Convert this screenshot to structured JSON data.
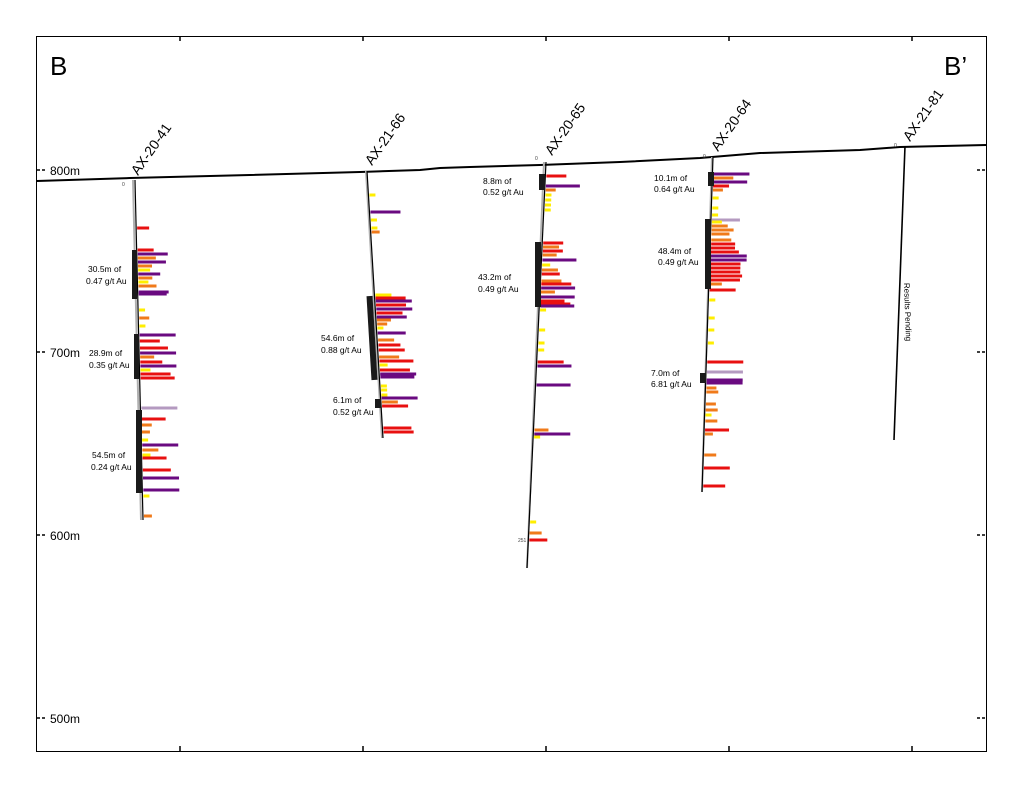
{
  "section": {
    "start_label": "B",
    "end_label": "B’",
    "elevation_labels": [
      {
        "value": 800,
        "label": "800m"
      },
      {
        "value": 700,
        "label": "700m"
      },
      {
        "value": 600,
        "label": "600m"
      },
      {
        "value": 500,
        "label": "500m"
      }
    ]
  },
  "colors": {
    "frame": "#000000",
    "trace": "#000000",
    "trace_shadow": "#b0b0b0",
    "intercept_bar": "#1a1a1a",
    "grade_yellow": "#ffee00",
    "grade_orange": "#f07a1a",
    "grade_red": "#e81010",
    "grade_purple": "#6a0a80",
    "grade_lilac": "#b49ac0"
  },
  "holes": [
    {
      "name": "AX-20-41",
      "collar_marker": "0",
      "intercepts": [
        {
          "line1": "30.5m of",
          "line2": "0.47 g/t Au"
        },
        {
          "line1": "28.9m of",
          "line2": "0.35 g/t Au"
        },
        {
          "line1": "54.5m of",
          "line2": "0.24 g/t Au"
        }
      ]
    },
    {
      "name": "AX-21-66",
      "intercepts": [
        {
          "line1": "54.6m of",
          "line2": "0.88 g/t Au"
        },
        {
          "line1": "6.1m of",
          "line2": "0.52 g/t Au"
        }
      ]
    },
    {
      "name": "AX-20-65",
      "collar_marker": "0",
      "depth_marker": "251",
      "intercepts": [
        {
          "line1": "8.8m of",
          "line2": "0.52 g/t Au"
        },
        {
          "line1": "43.2m of",
          "line2": "0.49 g/t Au"
        }
      ]
    },
    {
      "name": "AX-20-64",
      "collar_marker": "0",
      "intercepts": [
        {
          "line1": "10.1m of",
          "line2": "0.64 g/t Au"
        },
        {
          "line1": "48.4m of",
          "line2": "0.49 g/t Au"
        },
        {
          "line1": "7.0m of",
          "line2": "6.81 g/t Au"
        }
      ]
    },
    {
      "name": "AX-21-81",
      "collar_marker": "0",
      "status": "Results Pending",
      "intercepts": []
    }
  ]
}
